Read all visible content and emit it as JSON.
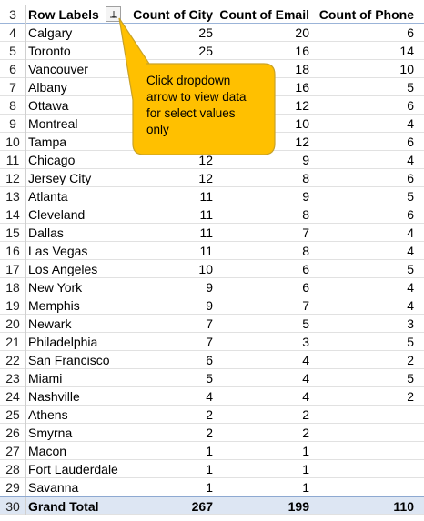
{
  "header": {
    "row_number": "3",
    "row_labels": "Row Labels",
    "count_city": "Count of City",
    "count_email": "Count of Email",
    "count_phone": "Count of Phone"
  },
  "rows": [
    {
      "n": "4",
      "label": "Calgary",
      "city": "25",
      "email": "20",
      "phone": "6"
    },
    {
      "n": "5",
      "label": "Toronto",
      "city": "25",
      "email": "16",
      "phone": "14"
    },
    {
      "n": "6",
      "label": "Vancouver",
      "city": "",
      "email": "18",
      "phone": "10"
    },
    {
      "n": "7",
      "label": "Albany",
      "city": "",
      "email": "16",
      "phone": "5"
    },
    {
      "n": "8",
      "label": "Ottawa",
      "city": "",
      "email": "12",
      "phone": "6"
    },
    {
      "n": "9",
      "label": "Montreal",
      "city": "",
      "email": "10",
      "phone": "4"
    },
    {
      "n": "10",
      "label": "Tampa",
      "city": "",
      "email": "12",
      "phone": "6"
    },
    {
      "n": "11",
      "label": "Chicago",
      "city": "12",
      "email": "9",
      "phone": "4"
    },
    {
      "n": "12",
      "label": "Jersey City",
      "city": "12",
      "email": "8",
      "phone": "6"
    },
    {
      "n": "13",
      "label": "Atlanta",
      "city": "11",
      "email": "9",
      "phone": "5"
    },
    {
      "n": "14",
      "label": "Cleveland",
      "city": "11",
      "email": "8",
      "phone": "6"
    },
    {
      "n": "15",
      "label": "Dallas",
      "city": "11",
      "email": "7",
      "phone": "4"
    },
    {
      "n": "16",
      "label": "Las Vegas",
      "city": "11",
      "email": "8",
      "phone": "4"
    },
    {
      "n": "17",
      "label": "Los Angeles",
      "city": "10",
      "email": "6",
      "phone": "5"
    },
    {
      "n": "18",
      "label": "New York",
      "city": "9",
      "email": "6",
      "phone": "4"
    },
    {
      "n": "19",
      "label": "Memphis",
      "city": "9",
      "email": "7",
      "phone": "4"
    },
    {
      "n": "20",
      "label": "Newark",
      "city": "7",
      "email": "5",
      "phone": "3"
    },
    {
      "n": "21",
      "label": "Philadelphia",
      "city": "7",
      "email": "3",
      "phone": "5"
    },
    {
      "n": "22",
      "label": "San Francisco",
      "city": "6",
      "email": "4",
      "phone": "2"
    },
    {
      "n": "23",
      "label": "Miami",
      "city": "5",
      "email": "4",
      "phone": "5"
    },
    {
      "n": "24",
      "label": "Nashville",
      "city": "4",
      "email": "4",
      "phone": "2"
    },
    {
      "n": "25",
      "label": "Athens",
      "city": "2",
      "email": "2",
      "phone": ""
    },
    {
      "n": "26",
      "label": "Smyrna",
      "city": "2",
      "email": "2",
      "phone": ""
    },
    {
      "n": "27",
      "label": "Macon",
      "city": "1",
      "email": "1",
      "phone": ""
    },
    {
      "n": "28",
      "label": "Fort Lauderdale",
      "city": "1",
      "email": "1",
      "phone": ""
    },
    {
      "n": "29",
      "label": "Savanna",
      "city": "1",
      "email": "1",
      "phone": ""
    }
  ],
  "total": {
    "n": "30",
    "label": "Grand Total",
    "city": "267",
    "email": "199",
    "phone": "110"
  },
  "callout": {
    "lines": [
      "Click dropdown",
      "arrow  to view data",
      "for select values",
      "only"
    ],
    "fill": "#FFC000",
    "stroke": "#C9A227"
  },
  "colors": {
    "total_bg": "#DDE6F3",
    "header_border": "#9BB4D8",
    "grid": "#E1E1E1"
  },
  "icons": {
    "filter_button": "filter-dropdown-icon"
  }
}
